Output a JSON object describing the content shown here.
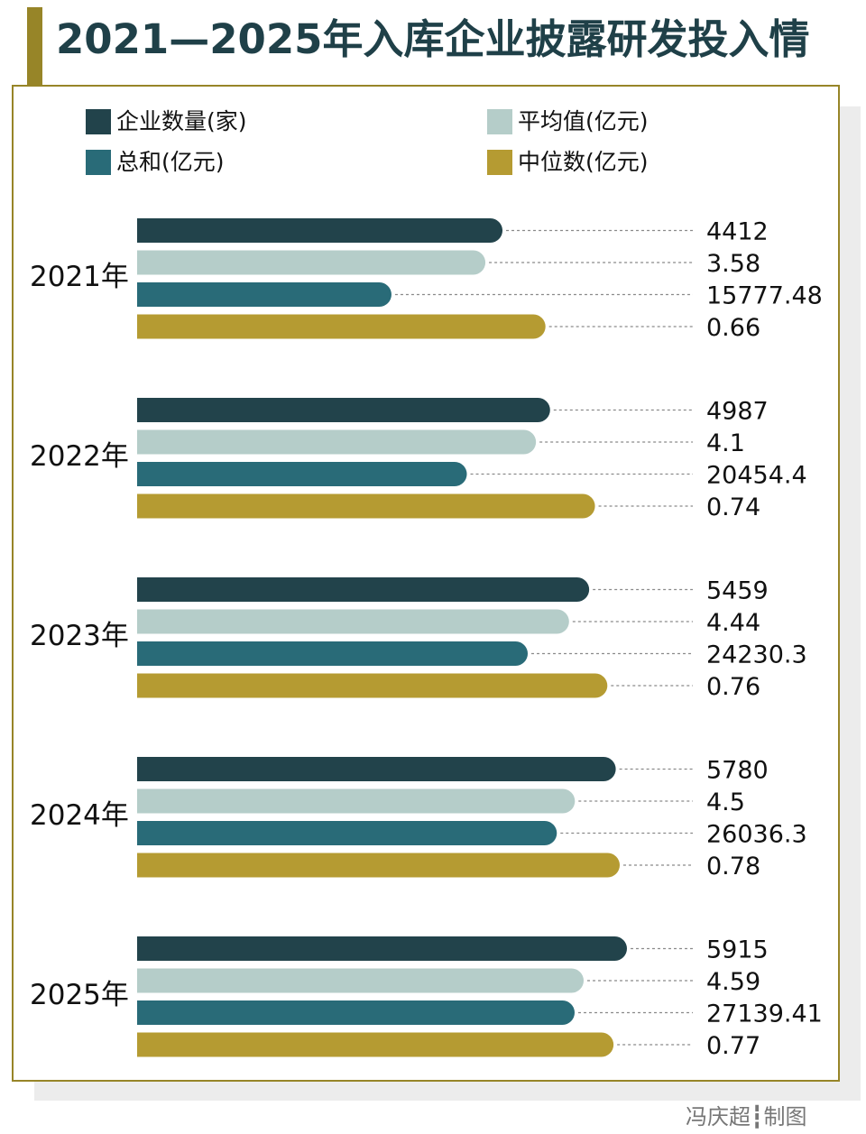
{
  "title": "2021—2025年入库企业披露研发投入情",
  "credit": "冯庆超┇制图",
  "chart_data": {
    "type": "bar",
    "orientation": "horizontal",
    "title": "2021—2025年入库企业披露研发投入情",
    "categories": [
      "2021年",
      "2022年",
      "2023年",
      "2024年",
      "2025年"
    ],
    "series": [
      {
        "name": "企业数量(家)",
        "color": "#22434b",
        "values": [
          4412,
          4987,
          5459,
          5780,
          5915
        ],
        "labels": [
          "4412",
          "4987",
          "5459",
          "5780",
          "5915"
        ]
      },
      {
        "name": "平均值(亿元)",
        "color": "#b5cdc9",
        "values": [
          3.58,
          4.1,
          4.44,
          4.5,
          4.59
        ],
        "labels": [
          "3.58",
          "4.1",
          "4.44",
          "4.5",
          "4.59"
        ]
      },
      {
        "name": "总和(亿元)",
        "color": "#296b78",
        "values": [
          15777.48,
          20454.4,
          24230.3,
          26036.3,
          27139.41
        ],
        "labels": [
          "15777.48",
          "20454.4",
          "24230.3",
          "26036.3",
          "27139.41"
        ]
      },
      {
        "name": "中位数(亿元)",
        "color": "#b59b32",
        "values": [
          0.66,
          0.74,
          0.76,
          0.78,
          0.77
        ],
        "labels": [
          "0.66",
          "0.74",
          "0.76",
          "0.78",
          "0.77"
        ]
      }
    ],
    "legend": "top",
    "grid": false
  }
}
